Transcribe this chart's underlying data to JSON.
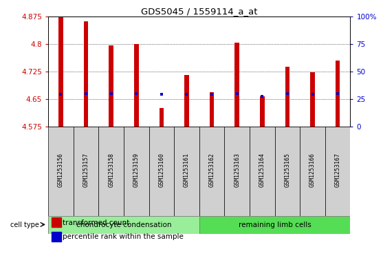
{
  "title": "GDS5045 / 1559114_a_at",
  "samples": [
    "GSM1253156",
    "GSM1253157",
    "GSM1253158",
    "GSM1253159",
    "GSM1253160",
    "GSM1253161",
    "GSM1253162",
    "GSM1253163",
    "GSM1253164",
    "GSM1253165",
    "GSM1253166",
    "GSM1253167"
  ],
  "bar_values": [
    4.875,
    4.862,
    4.795,
    4.8,
    4.625,
    4.715,
    4.668,
    4.803,
    4.657,
    4.737,
    4.722,
    4.755
  ],
  "percentile_values": [
    4.663,
    4.664,
    4.664,
    4.664,
    4.662,
    4.663,
    4.663,
    4.664,
    4.657,
    4.664,
    4.663,
    4.664
  ],
  "ymin": 4.575,
  "ymax": 4.875,
  "yticks": [
    4.575,
    4.65,
    4.725,
    4.8,
    4.875
  ],
  "right_yticks": [
    0,
    25,
    50,
    75,
    100
  ],
  "bar_color": "#cc0000",
  "percentile_color": "#0000cc",
  "bar_width": 0.18,
  "group1_label": "chondrocyte condensation",
  "group2_label": "remaining limb cells",
  "group1_color": "#99ee99",
  "group2_color": "#55dd55",
  "cell_type_label": "cell type",
  "legend_bar_label": "transformed count",
  "legend_pct_label": "percentile rank within the sample",
  "left_axis_color": "#cc0000",
  "right_axis_color": "#0000cc",
  "label_box_color": "#d0d0d0",
  "fig_bg": "#ffffff"
}
